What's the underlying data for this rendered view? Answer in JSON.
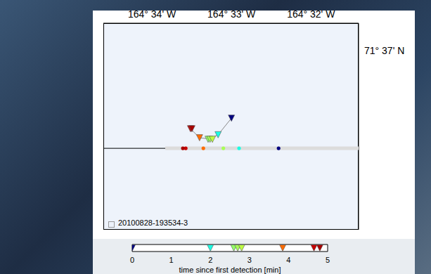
{
  "chart_data": {
    "type": "scatter",
    "marker": "triangle",
    "grid": false,
    "annotation": "20100828-193534-3",
    "xlim": [
      -164.5769,
      -164.5233
    ],
    "xticks": [
      {
        "value": -164.5667,
        "label": "164° 34' W"
      },
      {
        "value": -164.55,
        "label": "164° 33' W"
      },
      {
        "value": -164.5333,
        "label": "164° 32' W"
      }
    ],
    "ylim": [
      71.6048,
      71.6185
    ],
    "yticks": [
      {
        "value": 71.6167,
        "label": "71° 37' N"
      }
    ],
    "lines": [
      {
        "color": "#000000",
        "x": [
          -164.5769,
          -164.5639
        ],
        "y": [
          71.6102,
          71.6102
        ]
      },
      {
        "color": "#dcdcdc",
        "x": [
          -164.5639,
          -164.5233
        ],
        "y": [
          71.6102,
          71.6102
        ]
      }
    ],
    "detections": {
      "x": [
        -164.55,
        -164.5528,
        -164.5549,
        -164.5545,
        -164.554,
        -164.5567,
        -164.5586,
        -164.5583
      ],
      "y": [
        71.6122,
        71.6111,
        71.6108,
        71.6108,
        71.6108,
        71.6109,
        71.6115,
        71.6115
      ],
      "time": [
        0,
        2.0,
        2.6,
        2.7,
        2.8,
        3.85,
        4.65,
        4.8
      ]
    },
    "ground_points": {
      "x": [
        -164.5401,
        -164.5484,
        -164.5517,
        -164.5559,
        -164.5596,
        -164.5602
      ],
      "y": [
        71.6102,
        71.6102,
        71.6102,
        71.6102,
        71.6102,
        71.6102
      ],
      "time": [
        0,
        2.0,
        2.7,
        3.85,
        4.65,
        4.8
      ]
    },
    "colorbar": {
      "range": [
        0,
        5
      ],
      "ticks": [
        0,
        1,
        2,
        3,
        4,
        5
      ],
      "label": "time since first detection [min]"
    }
  }
}
